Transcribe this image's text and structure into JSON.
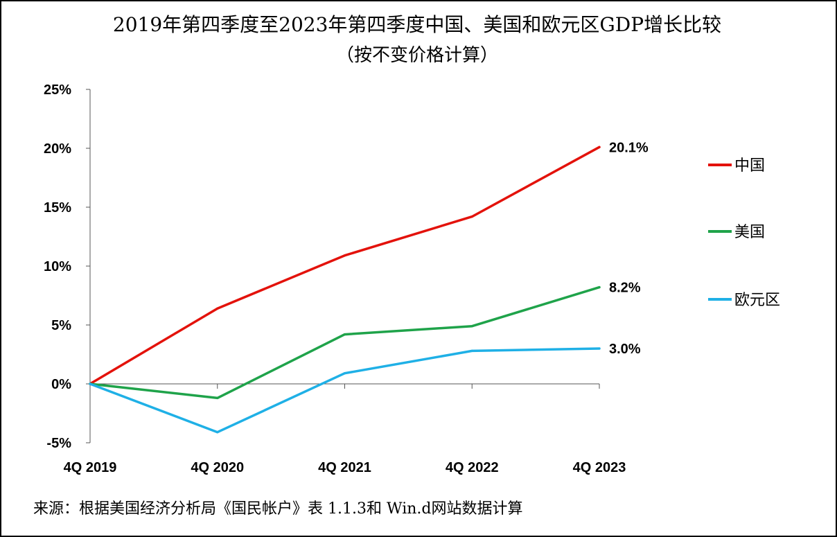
{
  "chart_data": {
    "type": "line",
    "title": "2019年第四季度至2023年第四季度中国、美国和欧元区GDP增长比较",
    "subtitle": "（按不变价格计算）",
    "source": "来源：根据美国经济分析局《国民帐户》表 1.1.3和 Win.d网站数据计算",
    "categories": [
      "4Q 2019",
      "4Q 2020",
      "4Q 2021",
      "4Q 2022",
      "4Q 2023"
    ],
    "ylim": [
      -5,
      25
    ],
    "yticks": [
      -5,
      0,
      5,
      10,
      15,
      20,
      25
    ],
    "ytick_labels": [
      "-5%",
      "0%",
      "5%",
      "10%",
      "15%",
      "20%",
      "25%"
    ],
    "series": [
      {
        "name": "中国",
        "color": "#e3120b",
        "values": [
          0,
          6.4,
          10.9,
          14.2,
          20.1
        ],
        "end_label": "20.1%"
      },
      {
        "name": "美国",
        "color": "#1fa34a",
        "values": [
          0,
          -1.2,
          4.2,
          4.9,
          8.2
        ],
        "end_label": "8.2%"
      },
      {
        "name": "欧元区",
        "color": "#1fb0e6",
        "values": [
          0,
          -4.1,
          0.9,
          2.8,
          3.0
        ],
        "end_label": "3.0%"
      }
    ],
    "legend_position": "right"
  }
}
